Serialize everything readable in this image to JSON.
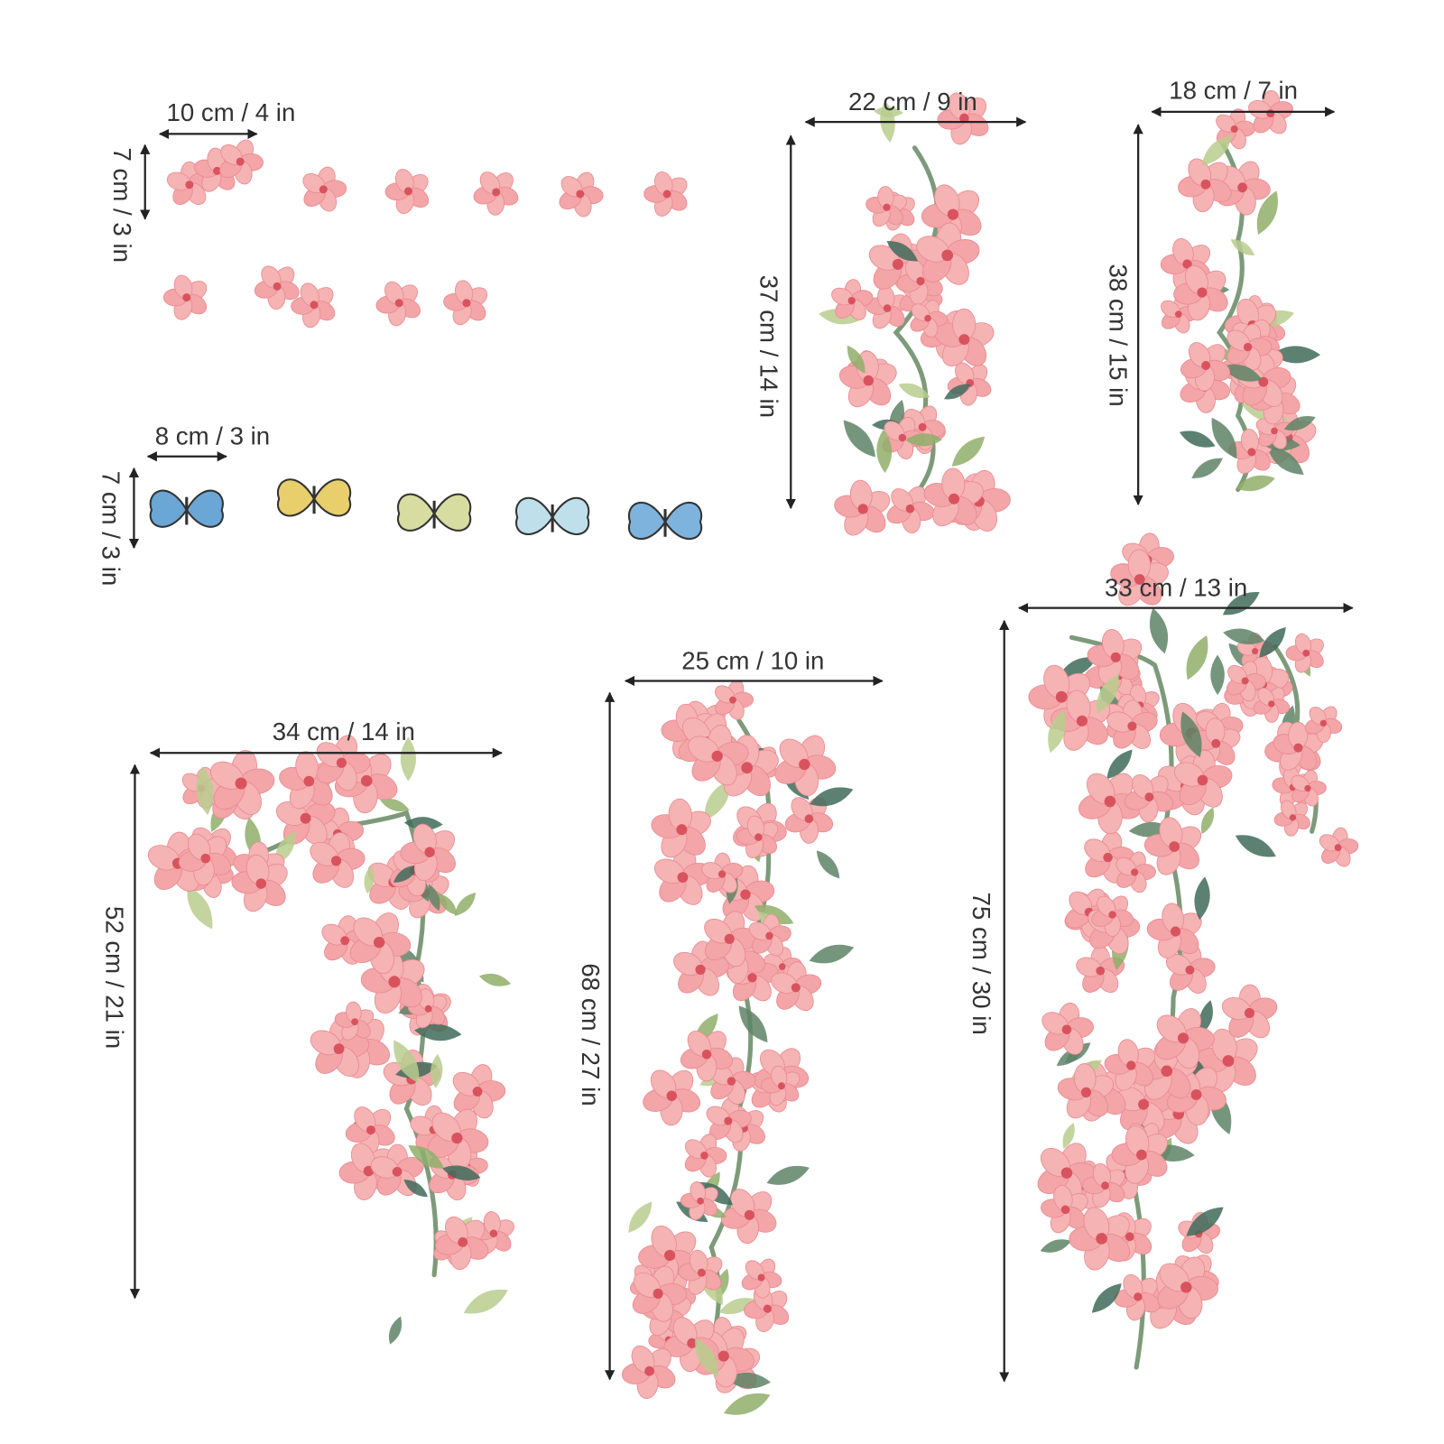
{
  "dimensions": [
    {
      "label": "10 cm / 4 in"
    },
    {
      "label": "7 cm / 3 in"
    },
    {
      "label": "8 cm / 3 in"
    },
    {
      "label": "7 cm / 3 in"
    },
    {
      "label": "22 cm / 9 in"
    },
    {
      "label": "37 cm / 14 in"
    },
    {
      "label": "18 cm / 7 in"
    },
    {
      "label": "38 cm / 15 in"
    },
    {
      "label": "33 cm / 13 in"
    },
    {
      "label": "75 cm / 30 in"
    },
    {
      "label": "25 cm / 10 in"
    },
    {
      "label": "68 cm / 27 in"
    },
    {
      "label": "34 cm / 14 in"
    },
    {
      "label": "52 cm / 21 in"
    }
  ]
}
